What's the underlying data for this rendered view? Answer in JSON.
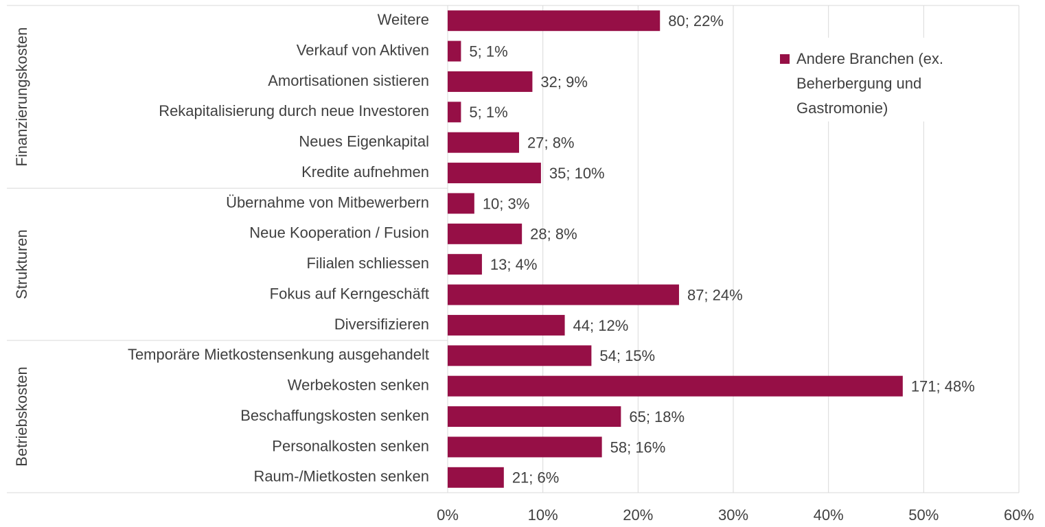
{
  "chart_data": {
    "type": "bar",
    "orientation": "horizontal",
    "groups": [
      {
        "name": "Finanzierungskosten",
        "categories": [
          "Weitere",
          "Verkauf von Aktiven",
          "Amortisationen sistieren",
          "Rekapitalisierung durch neue Investoren",
          "Neues Eigenkapital",
          "Kredite aufnehmen"
        ]
      },
      {
        "name": "Strukturen",
        "categories": [
          "Übernahme von Mitbewerbern",
          "Neue Kooperation / Fusion",
          "Filialen schliessen",
          "Fokus auf Kerngeschäft",
          "Diversifizieren"
        ]
      },
      {
        "name": "Betriebskosten",
        "categories": [
          "Temporäre Mietkostensenkung ausgehandelt",
          "Werbekosten senken",
          "Beschaffungskosten senken",
          "Personalkosten senken",
          "Raum-/Mietkosten senken"
        ]
      }
    ],
    "series": [
      {
        "name": "Andere Branchen (ex. Beherbergung und Gastromonie)",
        "color": "#960f46",
        "values": [
          22.3,
          1.4,
          8.9,
          1.4,
          7.5,
          9.8,
          2.8,
          7.8,
          3.6,
          24.3,
          12.3,
          15.1,
          47.8,
          18.2,
          16.2,
          5.9
        ],
        "value_labels": [
          "80; 22%",
          "5; 1%",
          "32; 9%",
          "5; 1%",
          "27; 8%",
          "35; 10%",
          "10; 3%",
          "28; 8%",
          "13; 4%",
          "87; 24%",
          "44; 12%",
          "54; 15%",
          "171; 48%",
          "65; 18%",
          "58; 16%",
          "21; 6%"
        ]
      }
    ],
    "xlim": [
      0,
      60
    ],
    "xticks": [
      {
        "value": 0,
        "label": "0%"
      },
      {
        "value": 10,
        "label": "10%"
      },
      {
        "value": 20,
        "label": "20%"
      },
      {
        "value": 30,
        "label": "30%"
      },
      {
        "value": 40,
        "label": "40%"
      },
      {
        "value": 50,
        "label": "50%"
      },
      {
        "value": 60,
        "label": "60%"
      }
    ],
    "grid": true,
    "legend_position": "upper right"
  }
}
